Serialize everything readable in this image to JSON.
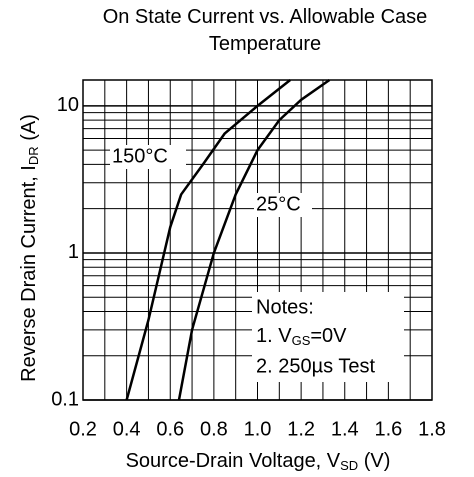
{
  "chart_data": {
    "type": "line",
    "title": "On State Current vs. Allowable Case Temperature",
    "x_label": {
      "text": "Source-Drain Voltage, V",
      "subscript": "SD",
      "suffix": " (V)"
    },
    "y_label": {
      "text": "Reverse Drain Current, I",
      "subscript": "DR",
      "suffix": " (A)"
    },
    "log_y": true,
    "grid": true,
    "xlim": [
      0.2,
      1.8
    ],
    "xticks": [
      0.2,
      0.4,
      0.6,
      0.8,
      {
        "value": 1,
        "label": "1.0"
      },
      1.2,
      1.4,
      1.6,
      1.8
    ],
    "xminor_ticks": [
      0.3,
      0.5,
      0.7,
      0.9,
      1.1,
      1.3,
      1.5,
      1.7
    ],
    "ylim": [
      0.1,
      15
    ],
    "yticks": [
      0.1,
      1,
      10
    ],
    "yminor_ticks": [
      0.2,
      0.3,
      0.4,
      0.5,
      0.6,
      0.7,
      0.8,
      0.9,
      2,
      3,
      4,
      5,
      6,
      7,
      8,
      9
    ],
    "series": [
      {
        "name": "150°C",
        "color": "#000000",
        "x": [
          0.4,
          0.5,
          0.6,
          0.65,
          0.75,
          0.85,
          1.0,
          1.15
        ],
        "values": [
          0.1,
          0.35,
          1.5,
          2.5,
          4,
          6.5,
          10,
          15
        ]
      },
      {
        "name": "25°C",
        "color": "#000000",
        "x": [
          0.64,
          0.7,
          0.8,
          0.9,
          1.0,
          1.1,
          1.2,
          1.33
        ],
        "values": [
          0.1,
          0.3,
          1,
          2.5,
          5,
          8,
          11,
          15
        ]
      }
    ],
    "notes": {
      "title": "Notes:",
      "line1": {
        "text": "1. V",
        "subscript": "GS",
        "suffix": "=0V"
      },
      "line2": "2. 250µs Test"
    }
  }
}
